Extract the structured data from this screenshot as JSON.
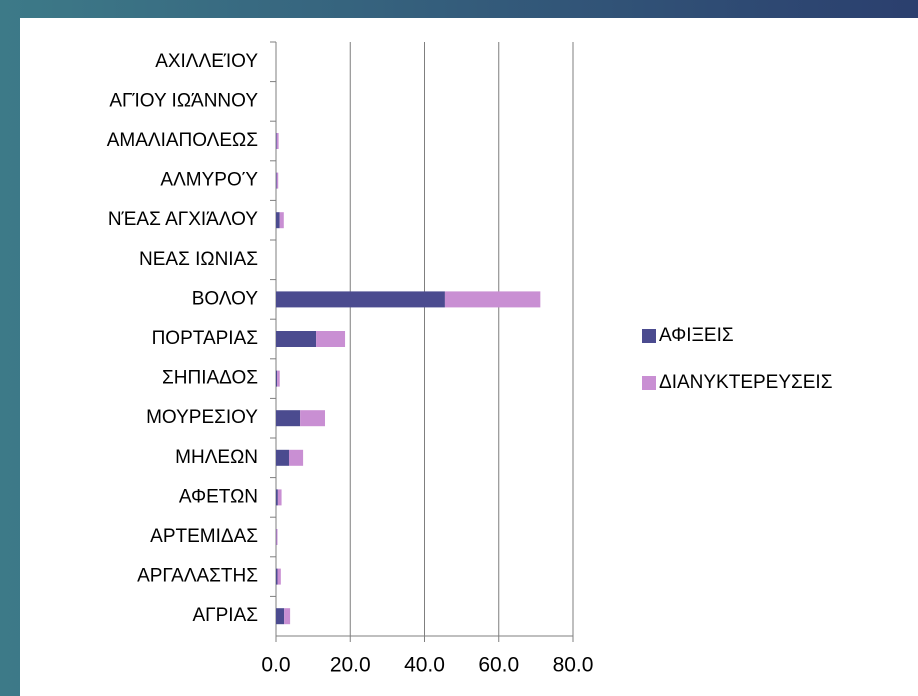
{
  "chart_data": {
    "type": "bar",
    "orientation": "horizontal",
    "stacked": true,
    "categories": [
      "ΑΧΙΛΛΕΊΟΥ",
      "ΑΓΊΟΥ ΙΩΆΝΝΟΥ",
      "ΑΜΑΛΙΑΠΟΛΕΩΣ",
      "ΑΛΜΥΡΟΎ",
      "ΝΈΑΣ ΑΓΧΙΆΛΟΥ",
      "ΝΕΑΣ ΙΩΝΙΑΣ",
      "ΒΟΛΟΥ",
      "ΠΟΡΤΑΡΙΑΣ",
      "ΣΗΠΙΑΔΟΣ",
      "ΜΟΥΡΕΣΙΟΥ",
      "ΜΗΛΕΩΝ",
      "ΑΦΕΤΩΝ",
      "ΑΡΤΕΜΙΔΑΣ",
      "ΑΡΓΑΛΑΣΤΗΣ",
      "ΑΓΡΙΑΣ"
    ],
    "series": [
      {
        "name": "ΑΦΙΞΕΙΣ",
        "color": "#4b4b8f",
        "values": [
          0,
          0,
          0.2,
          0.2,
          1.0,
          0,
          45.5,
          10.8,
          0.3,
          6.5,
          3.5,
          0.5,
          0.1,
          0.4,
          2.2
        ]
      },
      {
        "name": "ΔΙΑΝΥΚΤΕΡΕΥΣΕΙΣ",
        "color": "#c98fd3",
        "values": [
          0,
          0,
          0.5,
          0.4,
          1.1,
          0,
          25.7,
          7.8,
          0.7,
          6.7,
          3.8,
          1.0,
          0.3,
          0.9,
          1.6
        ]
      }
    ],
    "xlim": [
      0,
      80
    ],
    "xticks": [
      {
        "value": 0,
        "label": "0.0"
      },
      {
        "value": 20,
        "label": "20.0"
      },
      {
        "value": 40,
        "label": "40.0"
      },
      {
        "value": 60,
        "label": "60.0"
      },
      {
        "value": 80,
        "label": "80.0"
      }
    ],
    "grid": true,
    "legend": "right"
  }
}
